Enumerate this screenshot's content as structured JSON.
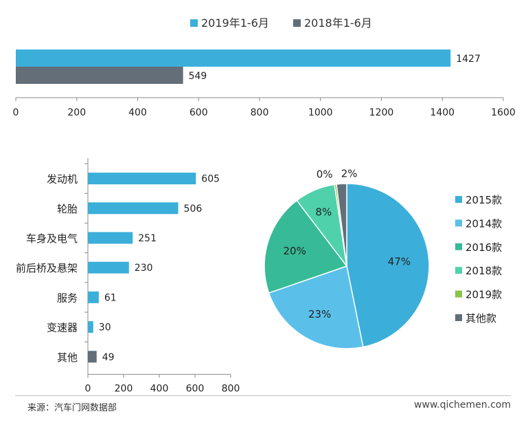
{
  "chart_data": [
    {
      "type": "bar",
      "orientation": "horizontal",
      "series": [
        {
          "name": "2019年1-6月",
          "values": [
            1427
          ]
        },
        {
          "name": "2018年1-6月",
          "values": [
            549
          ]
        }
      ],
      "xlim": [
        0,
        1600
      ],
      "xticks": [
        "0",
        "200",
        "400",
        "600",
        "800",
        "1000",
        "1200",
        "1400",
        "1600"
      ],
      "legend": "top-center",
      "colors": [
        "#3bafda",
        "#636e78"
      ]
    },
    {
      "type": "bar",
      "orientation": "horizontal",
      "categories": [
        "发动机",
        "轮胎",
        "车身及电气",
        "前后桥及悬架",
        "服务",
        "变速器",
        "其他"
      ],
      "values": [
        605,
        506,
        251,
        230,
        61,
        30,
        49
      ],
      "xlim": [
        0,
        800
      ],
      "xticks": [
        "0",
        "200",
        "400",
        "600",
        "800"
      ],
      "colors": [
        "#3bafda",
        "#3bafda",
        "#3bafda",
        "#3bafda",
        "#3bafda",
        "#3bafda",
        "#636e78"
      ]
    },
    {
      "type": "pie",
      "slices": [
        {
          "label": "2015款",
          "value": 47,
          "text": "47%",
          "color": "#3bafda"
        },
        {
          "label": "2014款",
          "value": 23,
          "text": "23%",
          "color": "#5ac0ea"
        },
        {
          "label": "2016款",
          "value": 20,
          "text": "20%",
          "color": "#36bb96"
        },
        {
          "label": "2018款",
          "value": 8,
          "text": "8%",
          "color": "#4fd1ac"
        },
        {
          "label": "2019款",
          "value": 0.4,
          "text": "0%",
          "color": "#8bc34a"
        },
        {
          "label": "其他款",
          "value": 2,
          "text": "2%",
          "color": "#636e78"
        }
      ],
      "legend": "right"
    }
  ],
  "footer": {
    "source": "来源：汽车门网数据部",
    "url": "www.qichemen.com"
  }
}
